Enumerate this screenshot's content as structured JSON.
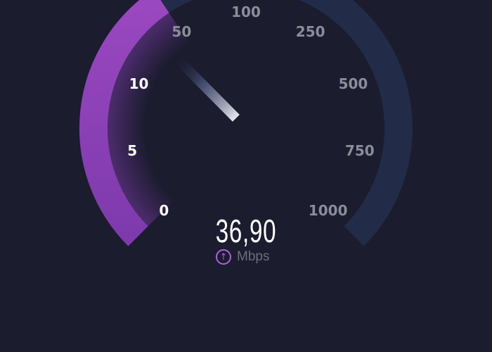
{
  "gauge": {
    "scale_labels": [
      "0",
      "5",
      "10",
      "50",
      "100",
      "250",
      "500",
      "750",
      "1000"
    ],
    "active_label_count": 3,
    "needle_value": 36.9,
    "colors": {
      "background": "#1b1c2e",
      "track": "#222b47",
      "fill": "#8e44b8",
      "inactive_label": "#8c8d99",
      "active_label": "#ffffff"
    }
  },
  "reading": {
    "value": "36,90",
    "unit": "Mbps",
    "direction_icon": "upload-arrow-icon"
  }
}
